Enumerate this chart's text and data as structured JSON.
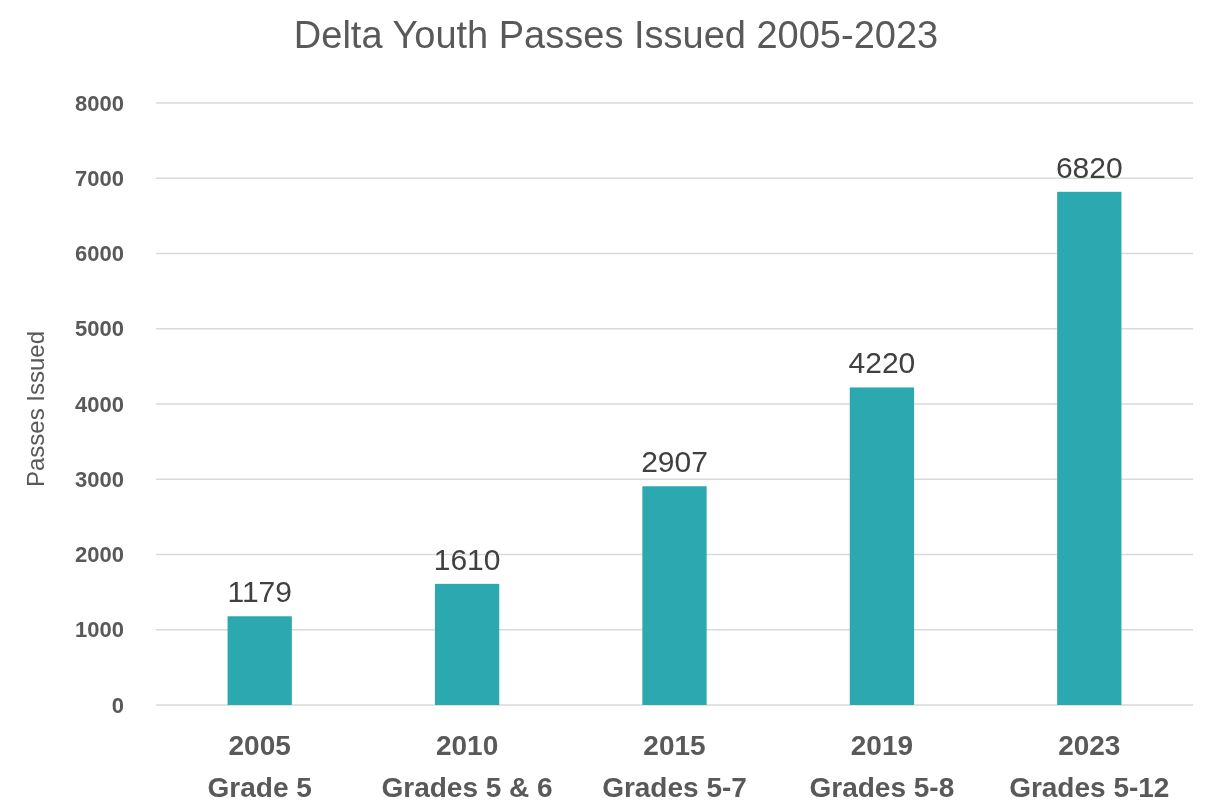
{
  "chart_data": {
    "type": "bar",
    "title": "Delta Youth Passes Issued 2005-2023",
    "ylabel": "Passes Issued",
    "categories": [
      "2005\nGrade 5",
      "2010\nGrades 5 & 6",
      "2015\nGrades 5-7",
      "2019\nGrades 5-8",
      "2023\nGrades 5-12"
    ],
    "values": [
      1179,
      1610,
      2907,
      4220,
      6820
    ],
    "color": "#2ca8b0",
    "ylim": [
      0,
      8000
    ],
    "yticks": [
      0,
      1000,
      2000,
      3000,
      4000,
      5000,
      6000,
      7000,
      8000
    ],
    "grid": "y",
    "data_labels": true
  }
}
